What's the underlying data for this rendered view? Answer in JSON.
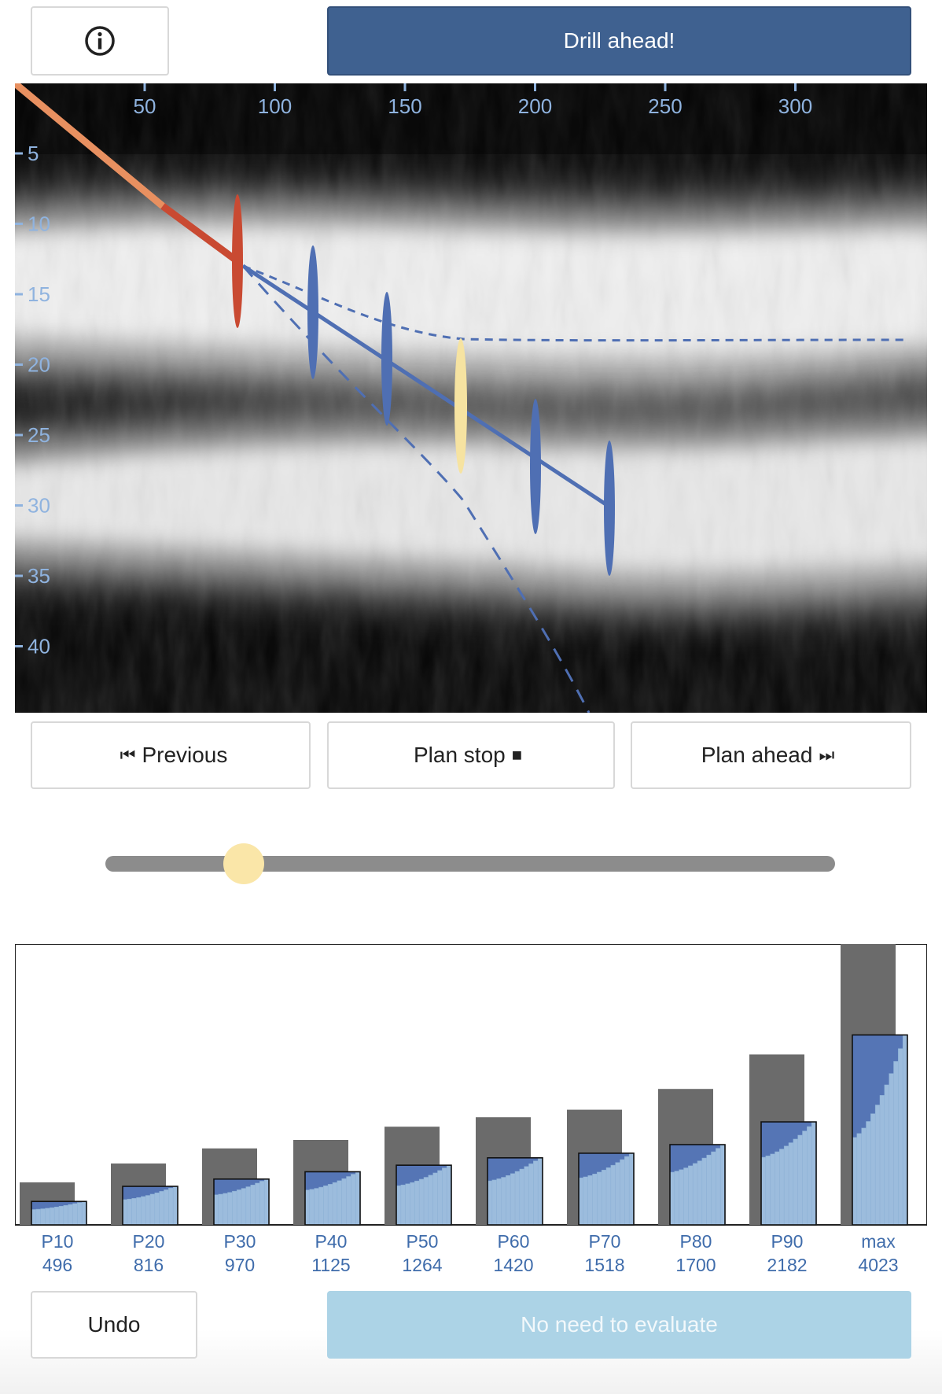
{
  "header": {
    "info_label": "ⓘ",
    "drill_label": "Drill ahead!"
  },
  "colors": {
    "drill_button": "#3f6190",
    "trajectory_drilled_early": "#e89060",
    "trajectory_drilled": "#c94a32",
    "trajectory_planned": "#4f6fb3",
    "uncertainty_selected": "#f6e3a1",
    "slider_thumb": "#fae6a8",
    "bar_target": "#6b6b6b",
    "bar_outcome": "#9cbcdd",
    "bar_gain": "#5575b5",
    "evaluate_button": "#acd3e6"
  },
  "viz": {
    "x_ticks": [
      "50",
      "100",
      "150",
      "200",
      "250",
      "300"
    ],
    "y_ticks": [
      "5",
      "10",
      "15",
      "20",
      "25",
      "30",
      "35",
      "40"
    ]
  },
  "controls": {
    "previous_label": "Previous",
    "previous_icon": "⏮",
    "plan_stop_label": "Plan stop",
    "plan_stop_icon": "■",
    "plan_ahead_label": "Plan ahead",
    "plan_ahead_icon": "⏭"
  },
  "slider": {
    "value": 0.19
  },
  "chart_data": {
    "type": "bar",
    "categories": [
      "P10",
      "P20",
      "P30",
      "P40",
      "P50",
      "P60",
      "P70",
      "P80",
      "P90",
      "max"
    ],
    "values": [
      496,
      816,
      970,
      1125,
      1264,
      1420,
      1518,
      1700,
      2182,
      4023
    ],
    "series": [
      {
        "name": "",
        "values": [
          900,
          1300,
          1620,
          1800,
          2080,
          2280,
          2440,
          2880,
          3610,
          5950
        ]
      },
      {
        "name": "",
        "values": [
          496,
          816,
          970,
          1125,
          1264,
          1420,
          1518,
          1700,
          2182,
          4023
        ]
      }
    ],
    "ylim": [
      0,
      5950
    ]
  },
  "footer": {
    "undo_label": "Undo",
    "evaluate_label": "No need to evaluate"
  }
}
